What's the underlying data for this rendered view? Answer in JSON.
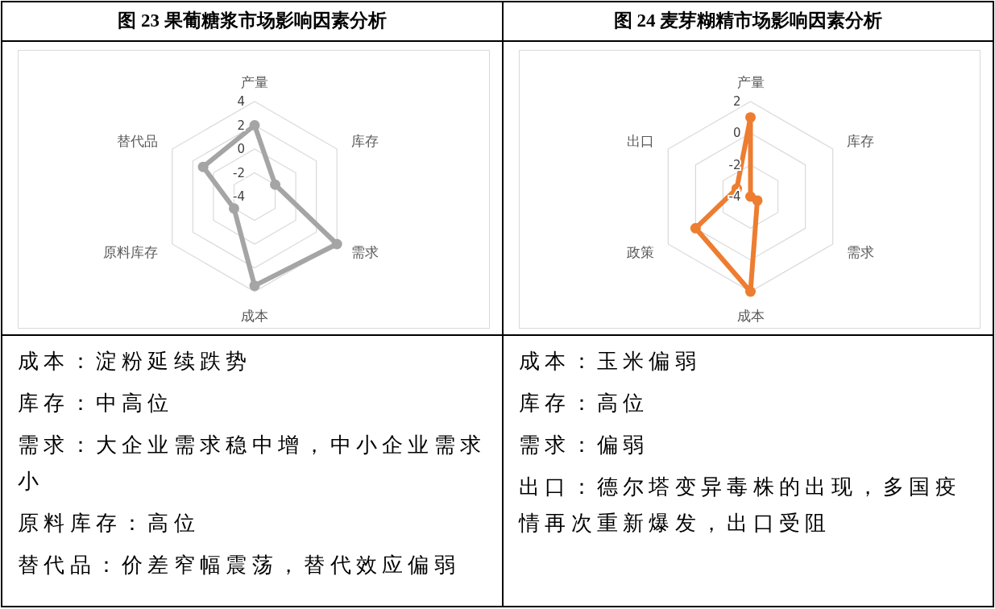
{
  "chart_data": [
    {
      "type": "radar",
      "title": "图 23 果葡糖浆市场影响因素分析",
      "categories": [
        "产量",
        "库存",
        "需求",
        "成本",
        "原料库存",
        "替代品"
      ],
      "ylim": [
        -4,
        4
      ],
      "yticks": [
        -4,
        -2,
        0,
        2,
        4
      ],
      "grid": true,
      "marker": "circle",
      "series": [
        {
          "color": "#a5a5a5",
          "values": [
            2,
            -2,
            4,
            3.5,
            -2,
            1
          ]
        }
      ]
    },
    {
      "type": "radar",
      "title": "图 24 麦芽糊精市场影响因素分析",
      "categories": [
        "产量",
        "库存",
        "需求",
        "成本",
        "政策",
        "出口"
      ],
      "ylim": [
        -4,
        2
      ],
      "yticks": [
        -4,
        -2,
        0,
        2
      ],
      "grid": true,
      "marker": "circle",
      "series": [
        {
          "color": "#ed7d31",
          "values": [
            1,
            -4,
            -3.5,
            2,
            0,
            -3
          ]
        }
      ]
    },
    {
      "type": "other",
      "annotations": [
        "成本：淀粉延续跌势",
        "库存：中高位",
        "需求：大企业需求稳中增，中小企业需求小",
        "原料库存：高位",
        "替代品：价差窄幅震荡，替代效应偏弱"
      ]
    },
    {
      "type": "other",
      "annotations": [
        "成本：玉米偏弱",
        "库存：高位",
        "需求：偏弱",
        "出口：德尔塔变异毒株的出现，多国疫情再次重新爆发，出口受阻"
      ]
    }
  ]
}
